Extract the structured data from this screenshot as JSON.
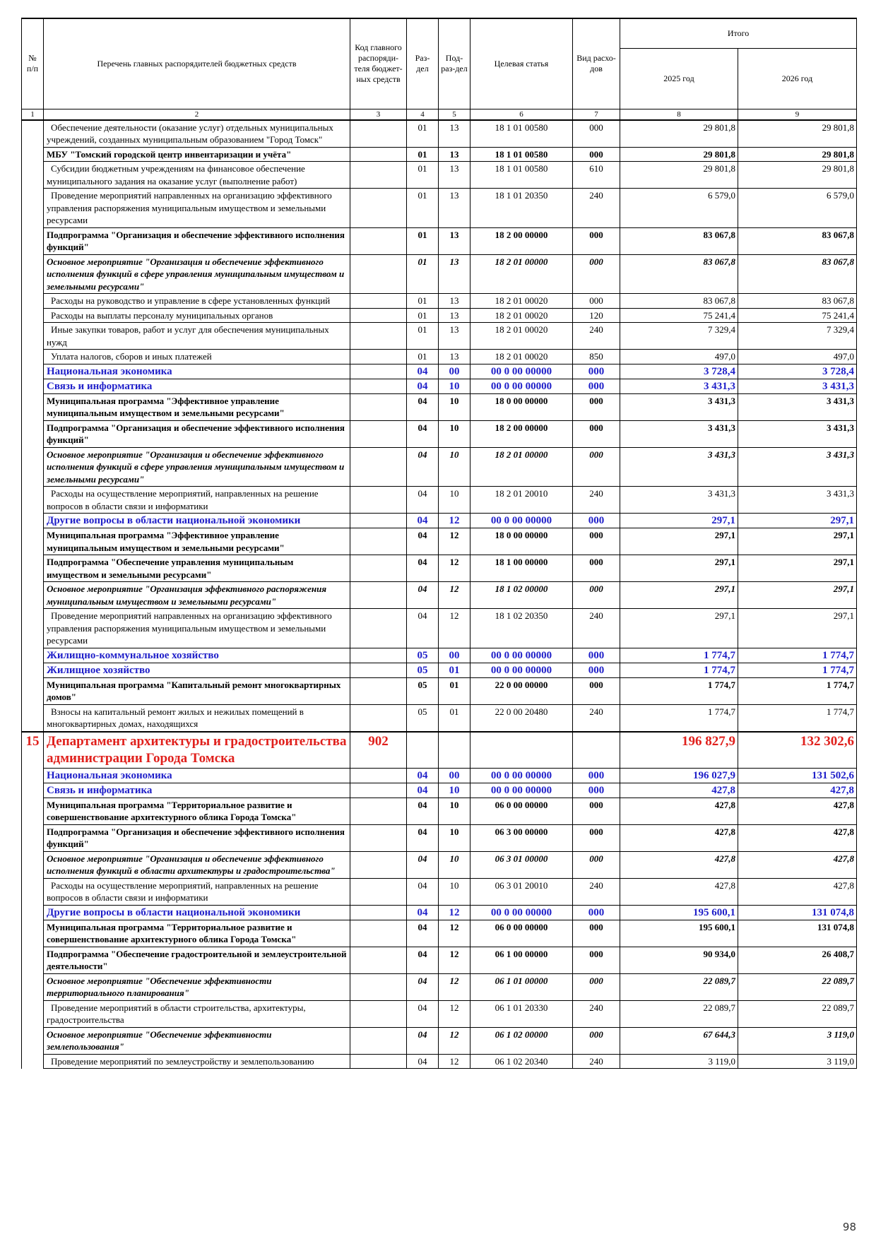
{
  "table": {
    "header": {
      "num": "№ п/п",
      "name": "Перечень главных распорядителей бюджетных средств",
      "code": "Код главного распоряди-теля бюджет-ных средств",
      "razdel": "Раз-дел",
      "podrazdel": "Под-раз-дел",
      "article": "Целевая статья",
      "vid": "Вид расхо-дов",
      "total": "Итого",
      "y1": "2025 год",
      "y2": "2026 год"
    },
    "col_numbers": [
      "1",
      "2",
      "3",
      "4",
      "5",
      "6",
      "7",
      "8",
      "9"
    ],
    "rows": [
      [
        null,
        "Обеспечение деятельности (оказание услуг) отдельных муниципальных учреждений, созданных муниципальным образованием \"Город Томск\"",
        null,
        "01",
        "13",
        "18 1 01 00580",
        "000",
        "29 801,8",
        "29 801,8"
      ],
      [
        null,
        "МБУ \"Томский городской центр инвентаризации и учёта\"",
        null,
        "01",
        "13",
        "18 1 01 00580",
        "000",
        "29 801,8",
        "29 801,8"
      ],
      [
        null,
        "Субсидии бюджетным учреждениям на финансовое обеспечение муниципального задания на оказание услуг (выполнение работ)",
        null,
        "01",
        "13",
        "18 1 01 00580",
        "610",
        "29 801,8",
        "29 801,8"
      ],
      [
        null,
        "Проведение мероприятий направленных на организацию эффективного управления распоряжения муниципальным имуществом и земельными ресурсами",
        null,
        "01",
        "13",
        "18 1 01 20350",
        "240",
        "6 579,0",
        "6 579,0"
      ],
      [
        null,
        "Подпрограмма \"Организация и обеспечение эффективного исполнения функций\"",
        null,
        "01",
        "13",
        "18 2 00 00000",
        "000",
        "83 067,8",
        "83 067,8"
      ],
      [
        null,
        "Основное мероприятие \"Организация и обеспечение эффективного исполнения функций в сфере управления муниципальным имуществом и земельными ресурсами\"",
        null,
        "01",
        "13",
        "18 2 01 00000",
        "000",
        "83 067,8",
        "83 067,8"
      ],
      [
        null,
        "Расходы на руководство и управление в сфере установленных функций",
        null,
        "01",
        "13",
        "18 2 01 00020",
        "000",
        "83 067,8",
        "83 067,8"
      ],
      [
        null,
        "Расходы на выплаты персоналу муниципальных органов",
        null,
        "01",
        "13",
        "18 2 01 00020",
        "120",
        "75 241,4",
        "75 241,4"
      ],
      [
        null,
        "Иные закупки товаров, работ и услуг для обеспечения муниципальных нужд",
        null,
        "01",
        "13",
        "18 2 01 00020",
        "240",
        "7 329,4",
        "7 329,4"
      ],
      [
        null,
        "Уплата налогов, сборов и иных платежей",
        null,
        "01",
        "13",
        "18 2 01 00020",
        "850",
        "497,0",
        "497,0"
      ],
      [
        null,
        "Национальная экономика",
        null,
        "04",
        "00",
        "00 0 00 00000",
        "000",
        "3 728,4",
        "3 728,4"
      ],
      [
        null,
        "Связь и информатика",
        null,
        "04",
        "10",
        "00 0 00 00000",
        "000",
        "3 431,3",
        "3 431,3"
      ],
      [
        null,
        "Муниципальная программа \"Эффективное управление муниципальным имуществом и земельными ресурсами\"",
        null,
        "04",
        "10",
        "18 0 00 00000",
        "000",
        "3 431,3",
        "3 431,3"
      ],
      [
        null,
        "Подпрограмма \"Организация и обеспечение эффективного исполнения функций\"",
        null,
        "04",
        "10",
        "18 2 00 00000",
        "000",
        "3 431,3",
        "3 431,3"
      ],
      [
        null,
        "Основное мероприятие \"Организация и обеспечение эффективного исполнения функций в сфере управления муниципальным имуществом и земельными ресурсами\"",
        null,
        "04",
        "10",
        "18 2 01 00000",
        "000",
        "3 431,3",
        "3 431,3"
      ],
      [
        null,
        "Расходы на осуществление мероприятий, направленных на решение вопросов в области связи и информатики",
        null,
        "04",
        "10",
        "18 2 01 20010",
        "240",
        "3 431,3",
        "3 431,3"
      ],
      [
        null,
        "Другие вопросы в области национальной экономики",
        null,
        "04",
        "12",
        "00 0 00 00000",
        "000",
        "297,1",
        "297,1"
      ],
      [
        null,
        "Муниципальная программа \"Эффективное управление муниципальным имуществом и земельными ресурсами\"",
        null,
        "04",
        "12",
        "18 0 00 00000",
        "000",
        "297,1",
        "297,1"
      ],
      [
        null,
        "Подпрограмма \"Обеспечение управления муниципальным имуществом и земельными ресурсами\"",
        null,
        "04",
        "12",
        "18 1 00 00000",
        "000",
        "297,1",
        "297,1"
      ],
      [
        null,
        "Основное мероприятие \"Организация эффективного распоряжения муниципальным имуществом и земельными ресурсами\"",
        null,
        "04",
        "12",
        "18 1 02 00000",
        "000",
        "297,1",
        "297,1"
      ],
      [
        null,
        "Проведение мероприятий направленных на организацию эффективного управления распоряжения муниципальным имуществом и земельными ресурсами",
        null,
        "04",
        "12",
        "18 1 02 20350",
        "240",
        "297,1",
        "297,1"
      ],
      [
        null,
        "Жилищно-коммунальное хозяйство",
        null,
        "05",
        "00",
        "00 0 00 00000",
        "000",
        "1 774,7",
        "1 774,7"
      ],
      [
        null,
        "Жилищное хозяйство",
        null,
        "05",
        "01",
        "00 0 00 00000",
        "000",
        "1 774,7",
        "1 774,7"
      ],
      [
        null,
        "Муниципальная программа \"Капитальный ремонт многоквартирных домов\"",
        null,
        "05",
        "01",
        "22 0 00 00000",
        "000",
        "1 774,7",
        "1 774,7"
      ],
      [
        null,
        "Взносы на капитальный ремонт жилых и нежилых помещений в многоквартирных домах, находящихся",
        null,
        "05",
        "01",
        "22 0 00 20480",
        "240",
        "1 774,7",
        "1 774,7"
      ],
      [
        "15",
        "Департамент архитектуры и градостроительства администрации Города Томска",
        "902",
        null,
        null,
        null,
        null,
        "196 827,9",
        "132 302,6"
      ],
      [
        null,
        "Национальная экономика",
        null,
        "04",
        "00",
        "00 0 00 00000",
        "000",
        "196 027,9",
        "131 502,6"
      ],
      [
        null,
        "Связь и информатика",
        null,
        "04",
        "10",
        "00 0 00 00000",
        "000",
        "427,8",
        "427,8"
      ],
      [
        null,
        "Муниципальная программа \"Территориальное развитие и совершенствование архитектурного облика Города Томска\"",
        null,
        "04",
        "10",
        "06 0 00 00000",
        "000",
        "427,8",
        "427,8"
      ],
      [
        null,
        "Подпрограмма \"Организация и обеспечение эффективного исполнения функций\"",
        null,
        "04",
        "10",
        "06 3 00 00000",
        "000",
        "427,8",
        "427,8"
      ],
      [
        null,
        "Основное мероприятие \"Организация и обеспечение эффективного исполнения функций в области архитектуры и градостроительства\"",
        null,
        "04",
        "10",
        "06 3 01 00000",
        "000",
        "427,8",
        "427,8"
      ],
      [
        null,
        "Расходы на осуществление мероприятий, направленных на решение вопросов в области связи и информатики",
        null,
        "04",
        "10",
        "06 3 01 20010",
        "240",
        "427,8",
        "427,8"
      ],
      [
        null,
        "Другие вопросы в области национальной экономики",
        null,
        "04",
        "12",
        "00 0 00 00000",
        "000",
        "195 600,1",
        "131 074,8"
      ],
      [
        null,
        "Муниципальная программа \"Территориальное развитие и совершенствование архитектурного облика Города Томска\"",
        null,
        "04",
        "12",
        "06 0 00 00000",
        "000",
        "195 600,1",
        "131 074,8"
      ],
      [
        null,
        "Подпрограмма \"Обеспечение градостроительной и землеустроительной деятельности\"",
        null,
        "04",
        "12",
        "06 1 00 00000",
        "000",
        "90 934,0",
        "26 408,7"
      ],
      [
        null,
        "Основное мероприятие \"Обеспечение эффективности территориального планирования\"",
        null,
        "04",
        "12",
        "06 1 01 00000",
        "000",
        "22 089,7",
        "22 089,7"
      ],
      [
        null,
        "Проведение мероприятий в области строительства, архитектуры, градостроительства",
        null,
        "04",
        "12",
        "06 1 01 20330",
        "240",
        "22 089,7",
        "22 089,7"
      ],
      [
        null,
        "Основное мероприятие \"Обеспечение эффективности землепользования\"",
        null,
        "04",
        "12",
        "06 1 02 00000",
        "000",
        "67 644,3",
        "3 119,0"
      ],
      [
        null,
        "Проведение мероприятий по землеустройству и землепользованию",
        null,
        "04",
        "12",
        "06 1 02 20340",
        "240",
        "3 119,0",
        "3 119,0"
      ]
    ]
  },
  "page_number": "98"
}
